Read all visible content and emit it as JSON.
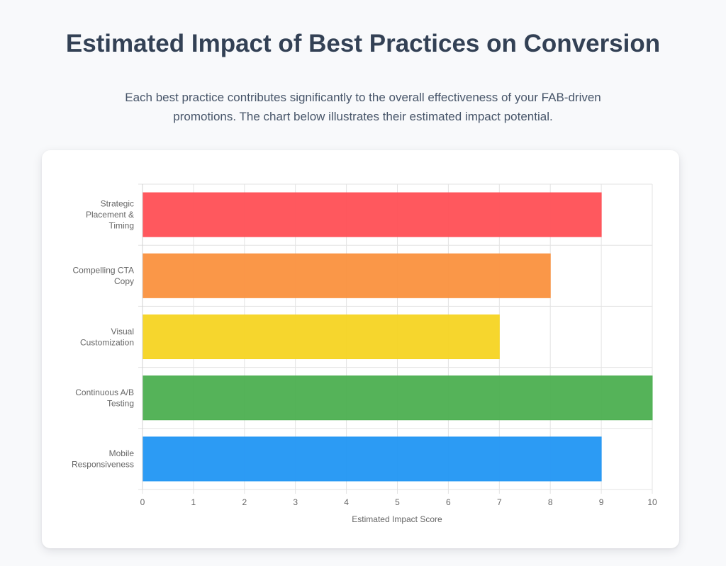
{
  "header": {
    "title": "Estimated Impact of Best Practices on Conversion",
    "intro": "Each best practice contributes significantly to the overall effectiveness of your FAB-driven promotions. The chart below illustrates their estimated impact potential."
  },
  "chart_data": {
    "type": "bar",
    "orientation": "horizontal",
    "categories": [
      [
        "Strategic",
        "Placement &",
        "Timing"
      ],
      [
        "Compelling CTA",
        "Copy"
      ],
      [
        "Visual",
        "Customization"
      ],
      [
        "Continuous A/B",
        "Testing"
      ],
      [
        "Mobile",
        "Responsiveness"
      ]
    ],
    "values": [
      9,
      8,
      7,
      10,
      9
    ],
    "colors": [
      "#ff4f55",
      "#fa913e",
      "#f6d422",
      "#4caf50",
      "#2196f3"
    ],
    "xlabel": "Estimated Impact Score",
    "ylabel": "",
    "xlim": [
      0,
      10
    ],
    "xticks": [
      "0",
      "1",
      "2",
      "3",
      "4",
      "5",
      "6",
      "7",
      "8",
      "9",
      "10"
    ],
    "grid": true,
    "legend": "none"
  }
}
